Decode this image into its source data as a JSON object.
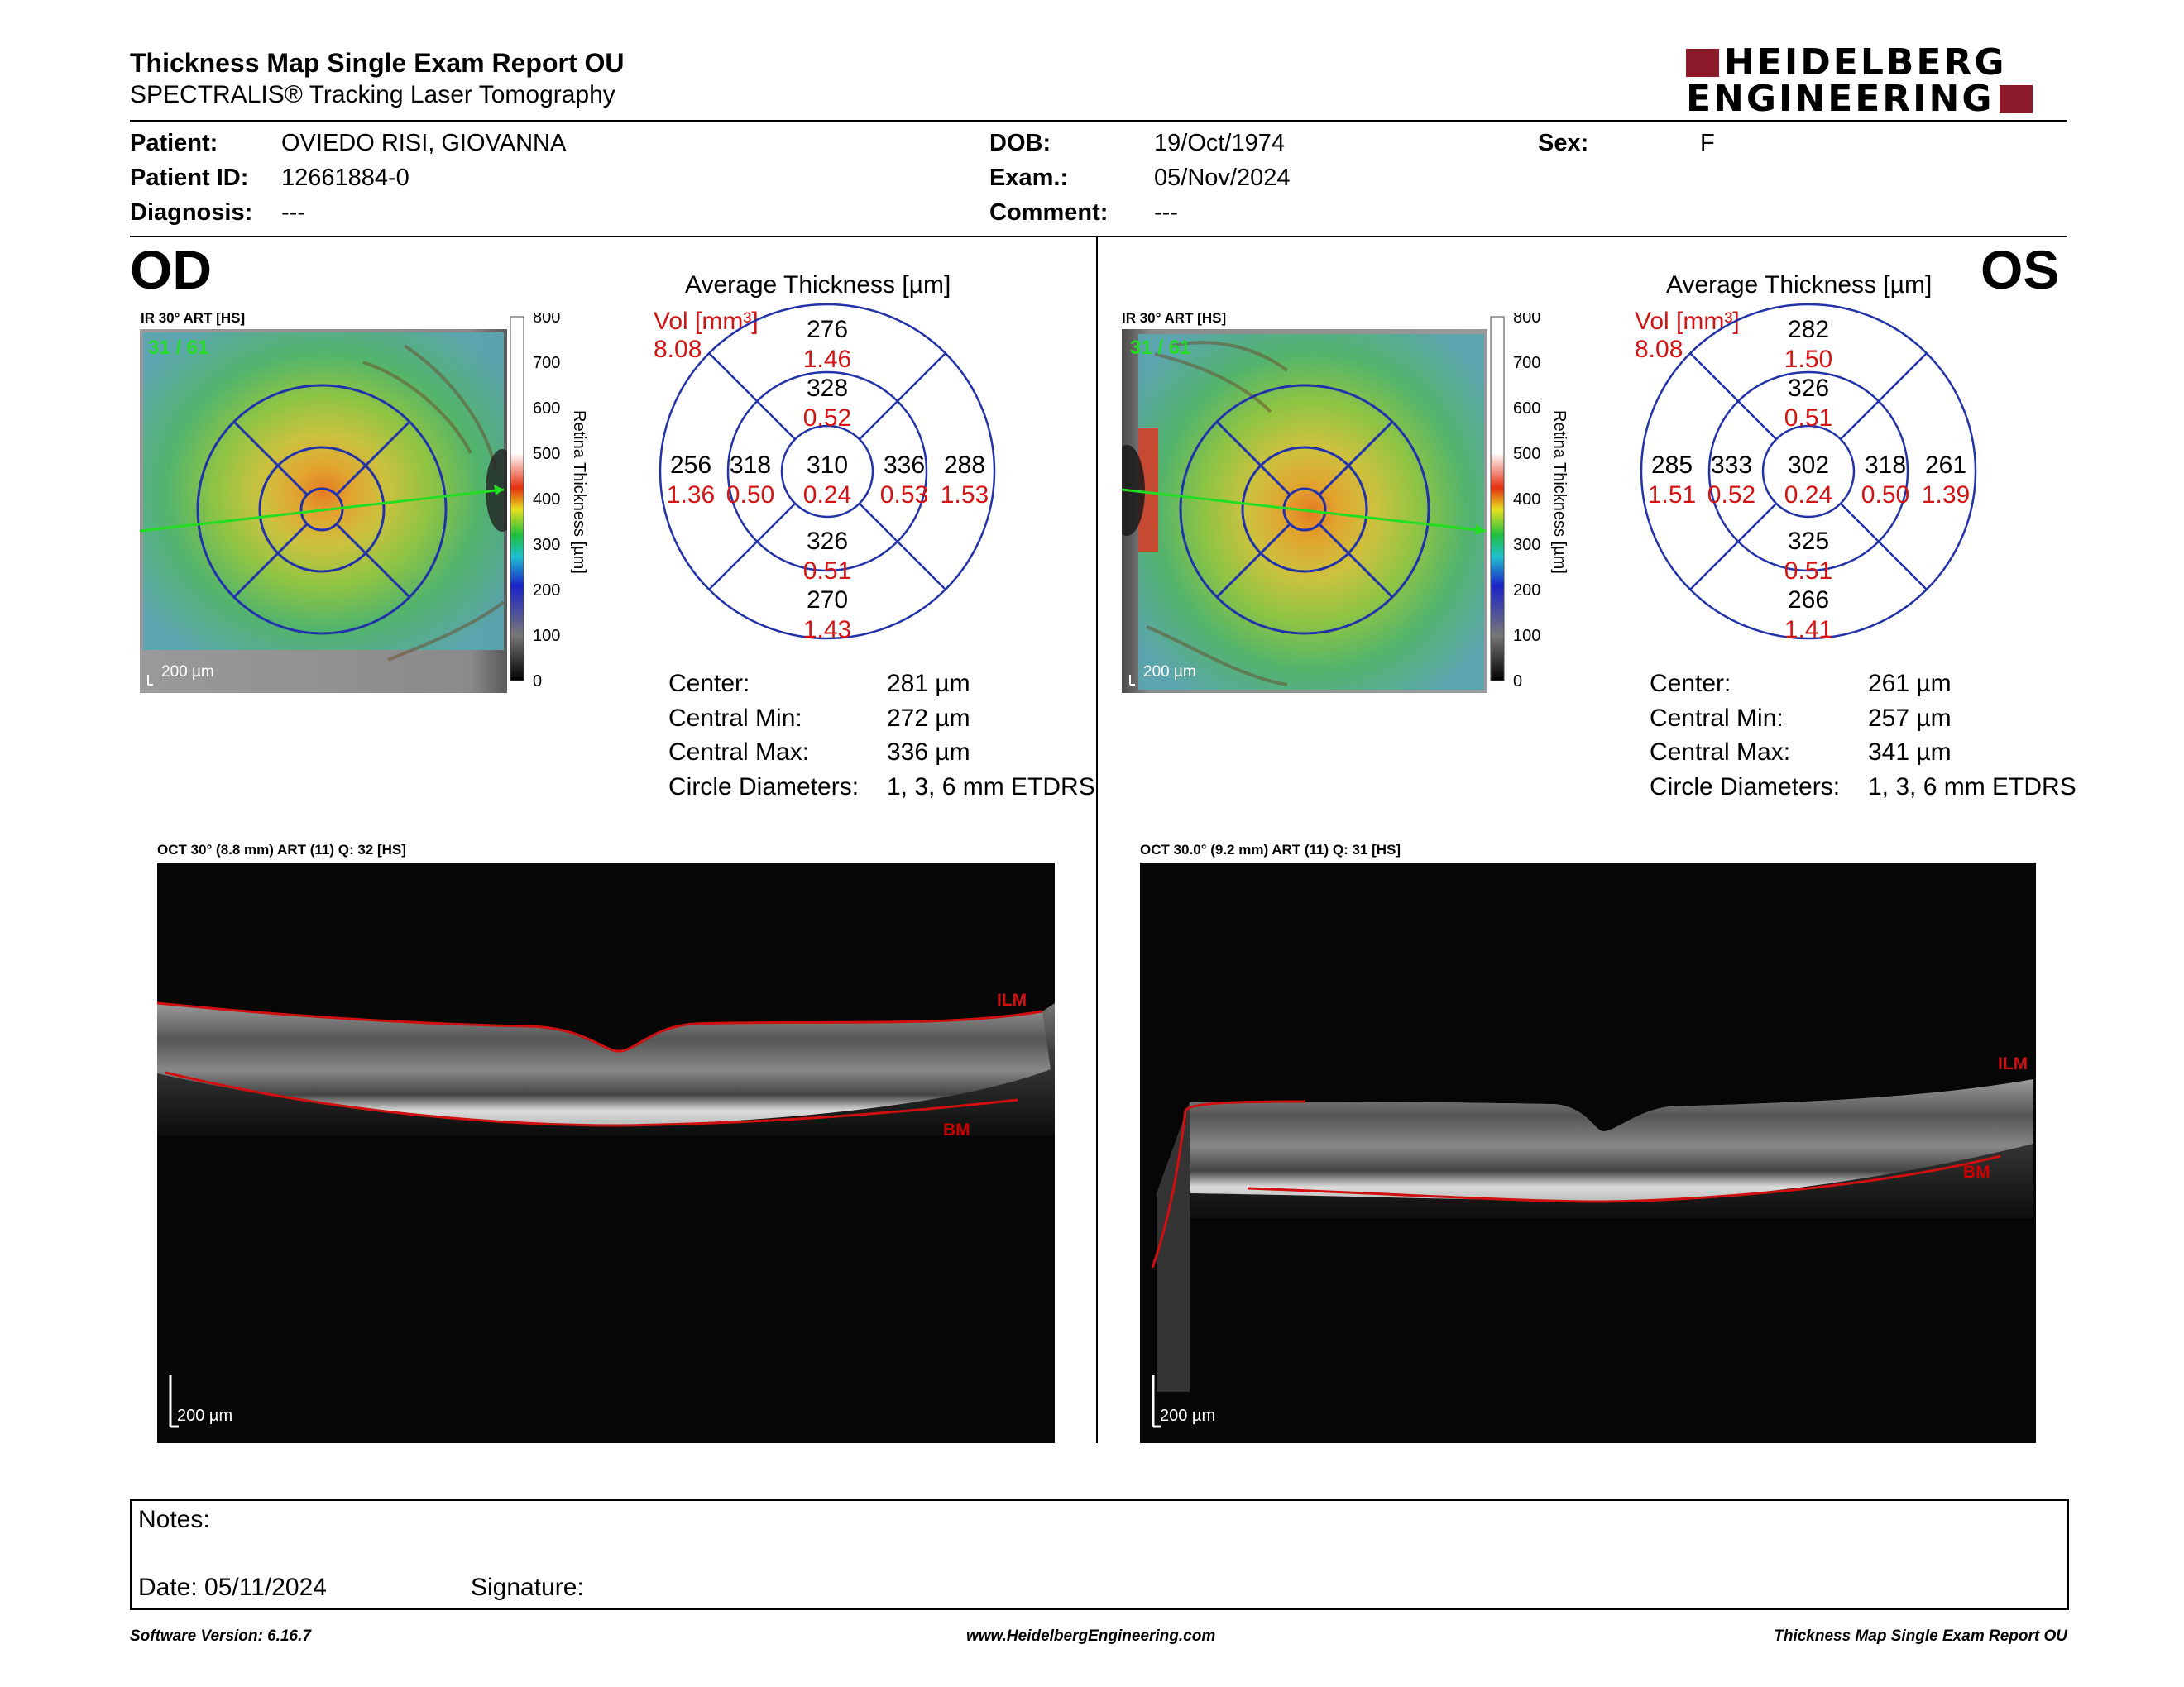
{
  "header": {
    "title": "Thickness Map Single Exam Report OU",
    "subtitle": "SPECTRALIS® Tracking Laser Tomography",
    "logo_line1": "HEIDELBERG",
    "logo_line2": "ENGINEERING"
  },
  "patient": {
    "patient_label": "Patient:",
    "patient_value": "OVIEDO RISI, GIOVANNA",
    "id_label": "Patient ID:",
    "id_value": "12661884-0",
    "diagnosis_label": "Diagnosis:",
    "diagnosis_value": "---",
    "dob_label": "DOB:",
    "dob_value": "19/Oct/1974",
    "exam_label": "Exam.:",
    "exam_value": "05/Nov/2024",
    "comment_label": "Comment:",
    "comment_value": "---",
    "sex_label": "Sex:",
    "sex_value": "F"
  },
  "colorbar": {
    "ticks": [
      "800",
      "700",
      "600",
      "500",
      "400",
      "300",
      "200",
      "100",
      "0"
    ],
    "label": "Retina Thickness [µm]"
  },
  "od": {
    "eye": "OD",
    "ir_label": "IR 30° ART [HS]",
    "frame": "31 / 61",
    "scale": "200 µm",
    "avg_title": "Average Thickness [µm]",
    "vol_label": "Vol [mm³]",
    "vol_value": "8.08",
    "sectors": {
      "outer_sup": [
        "276",
        "1.46"
      ],
      "inner_sup": [
        "328",
        "0.52"
      ],
      "outer_temp": [
        "256",
        "1.36"
      ],
      "inner_temp": [
        "318",
        "0.50"
      ],
      "center": [
        "310",
        "0.24"
      ],
      "inner_nas": [
        "336",
        "0.53"
      ],
      "outer_nas": [
        "288",
        "1.53"
      ],
      "inner_inf": [
        "326",
        "0.51"
      ],
      "outer_inf": [
        "270",
        "1.43"
      ]
    },
    "stats": [
      {
        "label": "Center:",
        "value": "281 µm"
      },
      {
        "label": "Central Min:",
        "value": "272 µm"
      },
      {
        "label": "Central Max:",
        "value": "336 µm"
      },
      {
        "label": "Circle Diameters:",
        "value": "1, 3, 6 mm ETDRS"
      }
    ],
    "oct_label": "OCT 30° (8.8 mm) ART (11) Q: 32 [HS]",
    "ilm": "ILM",
    "bm": "BM",
    "oct_scale": "200 µm"
  },
  "os": {
    "eye": "OS",
    "ir_label": "IR 30° ART [HS]",
    "frame": "31 / 61",
    "scale": "200 µm",
    "avg_title": "Average Thickness [µm]",
    "vol_label": "Vol [mm³]",
    "vol_value": "8.08",
    "sectors": {
      "outer_sup": [
        "282",
        "1.50"
      ],
      "inner_sup": [
        "326",
        "0.51"
      ],
      "outer_temp": [
        "285",
        "1.51"
      ],
      "inner_temp": [
        "333",
        "0.52"
      ],
      "center": [
        "302",
        "0.24"
      ],
      "inner_nas": [
        "318",
        "0.50"
      ],
      "outer_nas": [
        "261",
        "1.39"
      ],
      "inner_inf": [
        "325",
        "0.51"
      ],
      "outer_inf": [
        "266",
        "1.41"
      ]
    },
    "stats": [
      {
        "label": "Center:",
        "value": "261 µm"
      },
      {
        "label": "Central Min:",
        "value": "257 µm"
      },
      {
        "label": "Central Max:",
        "value": "341 µm"
      },
      {
        "label": "Circle Diameters:",
        "value": "1, 3, 6 mm ETDRS"
      }
    ],
    "oct_label": "OCT 30.0° (9.2 mm) ART (11) Q: 31 [HS]",
    "ilm": "ILM",
    "bm": "BM",
    "oct_scale": "200 µm"
  },
  "notes": {
    "notes_label": "Notes:",
    "date_label": "Date: 05/11/2024",
    "signature_label": "Signature:"
  },
  "footer": {
    "left": "Software Version: 6.16.7",
    "center": "www.HeidelbergEngineering.com",
    "right": "Thickness Map Single Exam Report OU"
  },
  "colors": {
    "etdrs_grid": "#2233aa",
    "volume_red": "#d21414",
    "layer_red": "#d01010",
    "logo_red": "#8c1a2b"
  }
}
